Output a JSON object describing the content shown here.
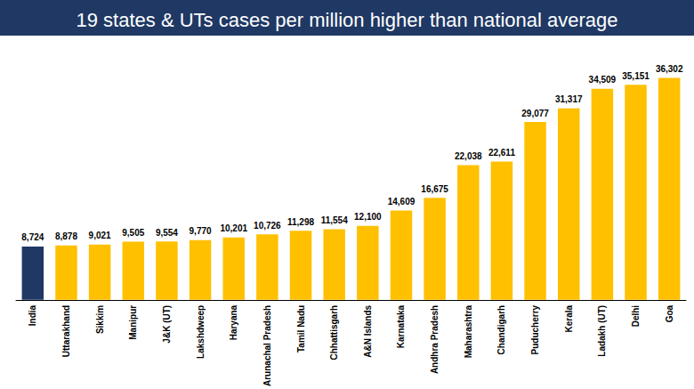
{
  "chart_data": {
    "type": "bar",
    "title": "19 states & UTs cases per million higher than national average",
    "categories": [
      "India",
      "Uttarakhand",
      "Sikkim",
      "Manipur",
      "J&K (UT)",
      "Lakshdweep",
      "Haryana",
      "Arunachal Pradesh",
      "Tamil Nadu",
      "Chhattisgarh",
      "A&N Islands",
      "Karnataka",
      "Andhra Pradesh",
      "Maharashtra",
      "Chandigarh",
      "Puducherry",
      "Kerala",
      "Ladakh (UT)",
      "Delhi",
      "Goa"
    ],
    "values": [
      8724,
      8878,
      9021,
      9505,
      9554,
      9770,
      10201,
      10726,
      11298,
      11554,
      12100,
      14609,
      16675,
      22038,
      22611,
      29077,
      31317,
      34509,
      35151,
      36302
    ],
    "value_labels": [
      "8,724",
      "8,878",
      "9,021",
      "9,505",
      "9,554",
      "9,770",
      "10,201",
      "10,726",
      "11,298",
      "11,554",
      "12,100",
      "14,609",
      "16,675",
      "22,038",
      "22,611",
      "29,077",
      "31,317",
      "34,509",
      "35,151",
      "36,302"
    ],
    "colors": [
      "#1f3864",
      "#ffc000",
      "#ffc000",
      "#ffc000",
      "#ffc000",
      "#ffc000",
      "#ffc000",
      "#ffc000",
      "#ffc000",
      "#ffc000",
      "#ffc000",
      "#ffc000",
      "#ffc000",
      "#ffc000",
      "#ffc000",
      "#ffc000",
      "#ffc000",
      "#ffc000",
      "#ffc000",
      "#ffc000"
    ],
    "ylim": [
      0,
      40000
    ],
    "grid": false,
    "data_labels": true,
    "tick_labels": "x"
  }
}
